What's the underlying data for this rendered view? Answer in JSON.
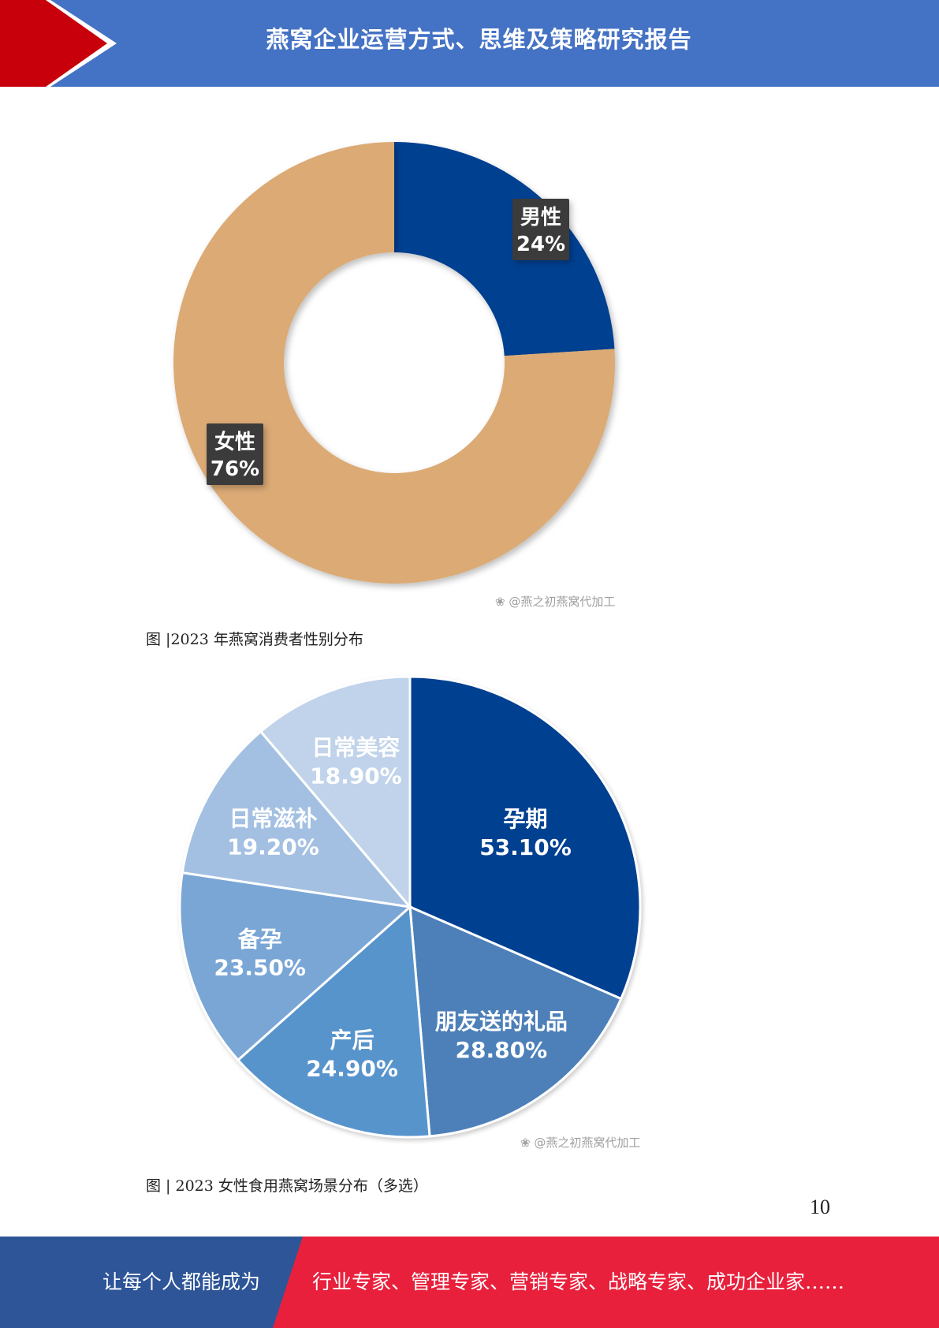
{
  "header": {
    "title": "燕窝企业运营方式、思维及策略研究报告"
  },
  "figures": [
    {
      "caption": "图 |2023 年燕窝消费者性别分布",
      "watermark": "❀ @燕之初燕窝代加工"
    },
    {
      "caption": "图 | 2023 女性食用燕窝场景分布（多选）",
      "watermark": "❀ @燕之初燕窝代加工"
    }
  ],
  "chart_data": [
    {
      "type": "donut",
      "slices": [
        {
          "name": "男性",
          "label": "24%",
          "value": 24,
          "color": "#003f91"
        },
        {
          "name": "女性",
          "label": "76%",
          "value": 76,
          "color": "#dcaa74"
        }
      ]
    },
    {
      "type": "pie",
      "slices": [
        {
          "name": "孕期",
          "label": "53.10%",
          "value": 53.1,
          "color": "#003f91"
        },
        {
          "name": "朋友送的礼品",
          "label": "28.80%",
          "value": 28.8,
          "color": "#4e80b8"
        },
        {
          "name": "产后",
          "label": "24.90%",
          "value": 24.9,
          "color": "#5894cc"
        },
        {
          "name": "备孕",
          "label": "23.50%",
          "value": 23.5,
          "color": "#7aa6d6"
        },
        {
          "name": "日常滋补",
          "label": "19.20%",
          "value": 19.2,
          "color": "#a3c0e2"
        },
        {
          "name": "日常美容",
          "label": "18.90%",
          "value": 18.9,
          "color": "#c0d3ea"
        }
      ]
    }
  ],
  "page_number": "10",
  "footer": {
    "left_text": "让每个人都能成为",
    "right_text": "行业专家、管理专家、营销专家、战略专家、成功企业家……"
  }
}
